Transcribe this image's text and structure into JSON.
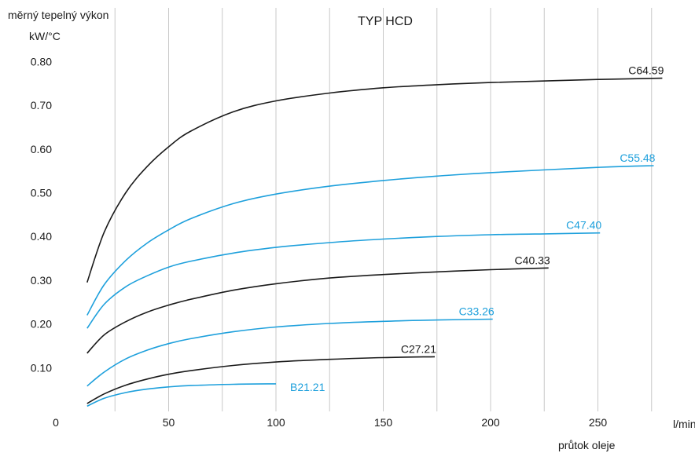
{
  "chart_data": {
    "type": "line",
    "title": "TYP HCD",
    "ylabel_line1": "měrný tepelný výkon",
    "ylabel_line2": "kW/°C",
    "xlabel_unit": "l/min",
    "xlabel": "průtok oleje",
    "xlim": [
      0,
      300
    ],
    "ylim": [
      0,
      0.85
    ],
    "x_ticks": [
      "0",
      "50",
      "100",
      "150",
      "200",
      "250"
    ],
    "x_tick_values": [
      0,
      50,
      100,
      150,
      200,
      250
    ],
    "y_ticks": [
      "0.10",
      "0.20",
      "0.30",
      "0.40",
      "0.50",
      "0.60",
      "0.70",
      "0.80"
    ],
    "y_tick_values": [
      0.1,
      0.2,
      0.3,
      0.4,
      0.5,
      0.6,
      0.7,
      0.8
    ],
    "grid": "vertical",
    "colors": {
      "black": "#1a1a1a",
      "blue": "#1ea0dc",
      "grid": "#c8c8c8"
    },
    "series": [
      {
        "name": "C64.59",
        "color": "#1a1a1a",
        "x": [
          12,
          20,
          30,
          40,
          50,
          60,
          80,
          100,
          125,
          150,
          175,
          200,
          250,
          280
        ],
        "y": [
          0.295,
          0.41,
          0.5,
          0.56,
          0.605,
          0.64,
          0.685,
          0.71,
          0.728,
          0.74,
          0.747,
          0.752,
          0.759,
          0.762
        ]
      },
      {
        "name": "C55.48",
        "color": "#1ea0dc",
        "x": [
          12,
          20,
          30,
          40,
          50,
          60,
          80,
          100,
          125,
          150,
          175,
          200,
          250,
          276
        ],
        "y": [
          0.22,
          0.29,
          0.345,
          0.385,
          0.415,
          0.44,
          0.475,
          0.497,
          0.515,
          0.528,
          0.538,
          0.546,
          0.558,
          0.562
        ]
      },
      {
        "name": "C47.40",
        "color": "#1ea0dc",
        "x": [
          12,
          20,
          30,
          40,
          50,
          60,
          80,
          100,
          125,
          150,
          175,
          200,
          225,
          251
        ],
        "y": [
          0.19,
          0.245,
          0.285,
          0.31,
          0.33,
          0.343,
          0.362,
          0.375,
          0.386,
          0.394,
          0.4,
          0.404,
          0.406,
          0.408
        ]
      },
      {
        "name": "C40.33",
        "color": "#1a1a1a",
        "x": [
          12,
          20,
          30,
          40,
          50,
          60,
          80,
          100,
          125,
          150,
          175,
          200,
          227
        ],
        "y": [
          0.133,
          0.175,
          0.205,
          0.227,
          0.243,
          0.256,
          0.277,
          0.292,
          0.305,
          0.313,
          0.319,
          0.324,
          0.328
        ]
      },
      {
        "name": "C33.26",
        "color": "#1ea0dc",
        "x": [
          12,
          20,
          30,
          40,
          50,
          60,
          80,
          100,
          125,
          150,
          175,
          201
        ],
        "y": [
          0.058,
          0.09,
          0.12,
          0.14,
          0.155,
          0.166,
          0.182,
          0.193,
          0.201,
          0.206,
          0.209,
          0.211
        ]
      },
      {
        "name": "C27.21",
        "color": "#1a1a1a",
        "x": [
          12,
          20,
          30,
          40,
          50,
          60,
          80,
          100,
          125,
          150,
          174
        ],
        "y": [
          0.018,
          0.04,
          0.06,
          0.074,
          0.085,
          0.093,
          0.105,
          0.113,
          0.119,
          0.123,
          0.125
        ]
      },
      {
        "name": "B21.21",
        "color": "#1ea0dc",
        "x": [
          12,
          20,
          30,
          40,
          50,
          60,
          80,
          100
        ],
        "y": [
          0.012,
          0.03,
          0.043,
          0.051,
          0.056,
          0.059,
          0.062,
          0.063
        ]
      }
    ]
  }
}
